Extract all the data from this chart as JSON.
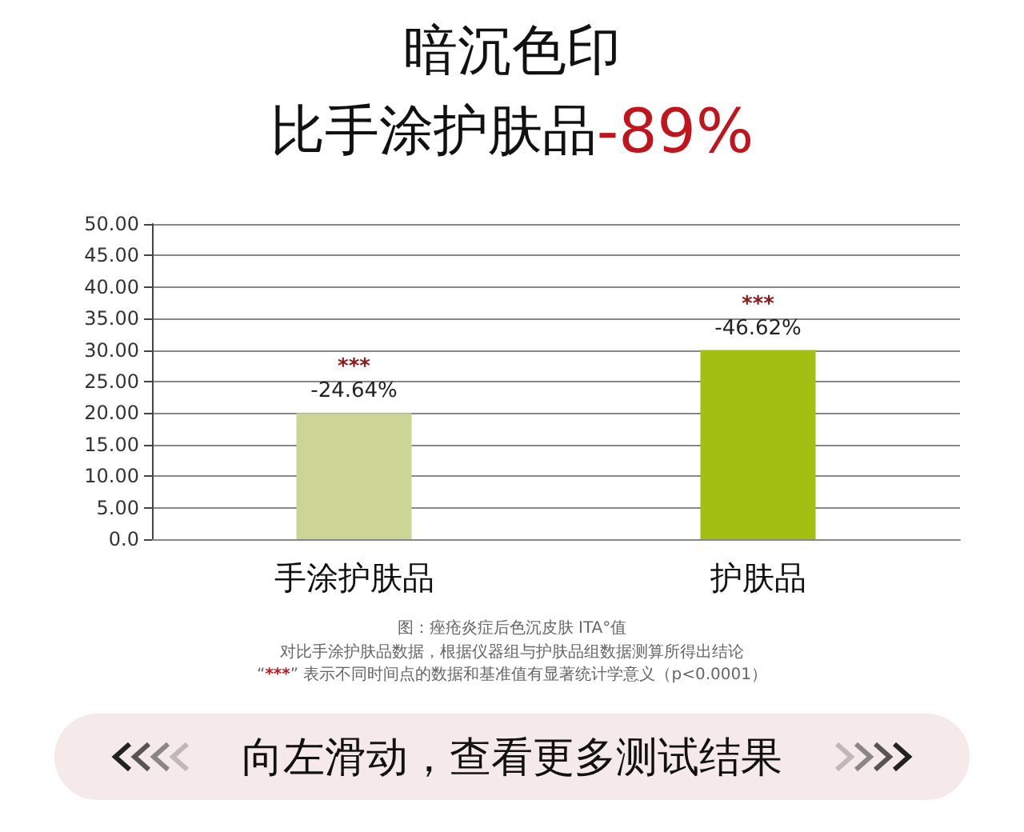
{
  "chart_data": {
    "type": "bar",
    "title": "暗沉色印",
    "subtitle": "比手涂护肤品-89%",
    "categories": [
      "手涂护肤品",
      "护肤品"
    ],
    "values": [
      20,
      30
    ],
    "colors": [
      "#ccd596",
      "#a3bf14"
    ],
    "ylim": [
      0,
      50
    ],
    "yticks": [
      {
        "value": 0,
        "label": "0.0"
      },
      {
        "value": 5,
        "label": "5.00"
      },
      {
        "value": 10,
        "label": "10.00"
      },
      {
        "value": 15,
        "label": "15.00"
      },
      {
        "value": 20,
        "label": "20.00"
      },
      {
        "value": 25,
        "label": "25.00"
      },
      {
        "value": 30,
        "label": "30.00"
      },
      {
        "value": 35,
        "label": "35.00"
      },
      {
        "value": 40,
        "label": "40.00"
      },
      {
        "value": 45,
        "label": "45.00"
      },
      {
        "value": 50,
        "label": "50.00"
      }
    ],
    "grid": "y",
    "annotations": [
      {
        "text": "***",
        "x": "手涂护肤品",
        "y": 20
      },
      {
        "text": "-24.64%",
        "x": "手涂护肤品",
        "y": 20
      },
      {
        "text": "***",
        "x": "护肤品",
        "y": 30
      },
      {
        "text": "-46.62%",
        "x": "护肤品",
        "y": 30
      },
      "图：痤疮炎症后色沉皮肤 ITA°值",
      "对比手涂护肤品数据，根据仪器组与护肤品组数据测算所得出结论",
      "“***” 表示不同时间点的数据和基准值有显著统计学意义（p<0.0001）",
      "向左滑动，查看更多测试结果"
    ]
  }
}
